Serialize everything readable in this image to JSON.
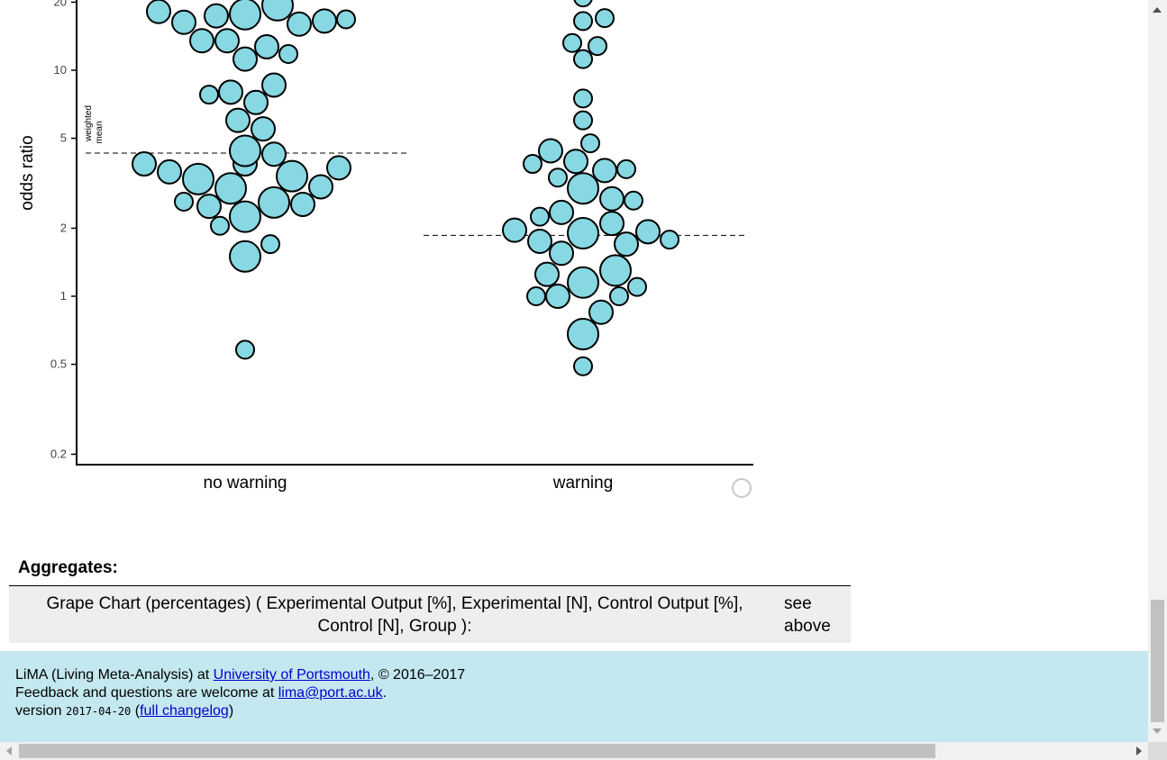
{
  "chart_data": {
    "type": "scatter",
    "subtype": "grape chart",
    "ylabel": "odds ratio",
    "xlabel": "",
    "yscale": "log",
    "ylim": [
      0.2,
      20
    ],
    "yticks": [
      "0.2",
      "0.5",
      "1",
      "2",
      "5",
      "10",
      "20"
    ],
    "categories": [
      "no warning",
      "warning"
    ],
    "mean_label": [
      "weighted",
      "mean"
    ],
    "weighted_means": [
      4.3,
      1.86
    ],
    "point_color": "#87d8e2",
    "series": [
      {
        "name": "no warning",
        "values": [
          0.58,
          1.5,
          1.7,
          2.05,
          2.25,
          2.5,
          2.55,
          2.6,
          2.62,
          3.0,
          3.05,
          3.3,
          3.4,
          3.55,
          3.7,
          3.85,
          3.85,
          4.25,
          4.4,
          5.5,
          6.0,
          7.2,
          7.8,
          8.0,
          8.6,
          11.2,
          11.8,
          12.7,
          13.5,
          13.5,
          16.0,
          16.3,
          16.5,
          16.8,
          17.4,
          17.7,
          18.2,
          19.4
        ],
        "sizes": [
          1,
          3,
          1,
          1,
          3,
          2,
          2,
          3,
          1,
          3,
          2,
          3,
          3,
          2,
          2,
          2,
          2,
          2,
          3,
          2,
          2,
          2,
          1,
          2,
          2,
          2,
          1,
          2,
          2,
          2,
          2,
          2,
          2,
          1,
          2,
          3,
          2,
          3
        ]
      },
      {
        "name": "warning",
        "values": [
          0.49,
          0.68,
          0.85,
          1.0,
          1.0,
          1.0,
          1.1,
          1.15,
          1.25,
          1.3,
          1.55,
          1.7,
          1.75,
          1.78,
          1.9,
          1.93,
          1.96,
          2.1,
          2.25,
          2.35,
          2.65,
          2.7,
          3.0,
          3.35,
          3.6,
          3.65,
          3.85,
          3.95,
          4.4,
          4.75,
          6.0,
          7.5,
          11.2,
          12.8,
          13.2,
          16.5,
          17.0,
          21.0
        ],
        "sizes": [
          1,
          3,
          2,
          1,
          1,
          2,
          1,
          3,
          2,
          3,
          2,
          2,
          2,
          1,
          3,
          2,
          2,
          2,
          1,
          2,
          1,
          2,
          3,
          1,
          2,
          1,
          1,
          2,
          2,
          1,
          1,
          1,
          1,
          1,
          1,
          1,
          1,
          1
        ]
      }
    ]
  },
  "aggregates": {
    "heading": "Aggregates:",
    "row_label": "Grape Chart (percentages) ( Experimental Output [%], Experimental [N], Control Output [%], Control [N], Group ):",
    "row_value": "see above"
  },
  "footer": {
    "line1_prefix": "LiMA (Living Meta-Analysis) at ",
    "line1_link": "University of Portsmouth",
    "line1_suffix": ", © 2016–2017",
    "line2_prefix": "Feedback and questions are welcome at ",
    "line2_link": "lima@port.ac.uk",
    "line2_suffix": ".",
    "line3_prefix": "version ",
    "version": "2017-04-20",
    "line3_mid": " (",
    "line3_link": "full changelog",
    "line3_suffix": ")"
  }
}
